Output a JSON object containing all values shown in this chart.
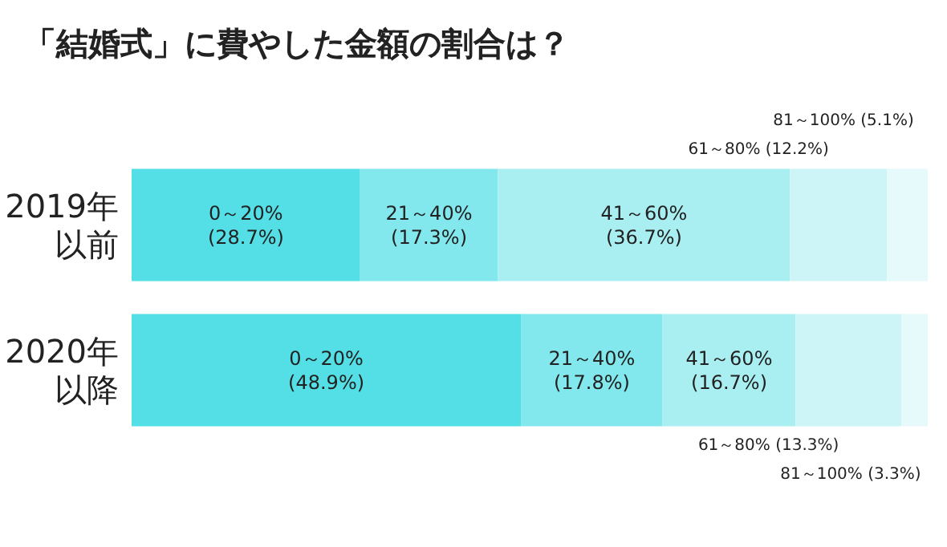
{
  "chart_data": {
    "type": "bar",
    "orientation": "horizontal",
    "stacked": true,
    "title": "「結婚式」に費やした金額の割合は？",
    "categories": [
      "2019年以前",
      "2020年以降"
    ],
    "xlim": [
      0,
      100
    ],
    "tick_labels": "y",
    "legend": false,
    "series": [
      {
        "name": "0～20%",
        "color": "#54dfe6",
        "values": [
          28.7,
          48.9
        ],
        "value_labels": [
          "(28.7%)",
          "(48.9%)"
        ]
      },
      {
        "name": "21～40%",
        "color": "#82e8ed",
        "values": [
          17.3,
          17.8
        ],
        "value_labels": [
          "(17.3%)",
          "(17.8%)"
        ]
      },
      {
        "name": "41～60%",
        "color": "#a9eff2",
        "values": [
          36.7,
          16.7
        ],
        "value_labels": [
          "(36.7%)",
          "(16.7%)"
        ]
      },
      {
        "name": "61～80%",
        "color": "#cdf5f7",
        "values": [
          12.2,
          13.3
        ],
        "value_labels": [
          "(12.2%)",
          "(13.3%)"
        ]
      },
      {
        "name": "81～100%",
        "color": "#e6fafb",
        "values": [
          5.1,
          3.3
        ],
        "value_labels": [
          "(5.1%)",
          "(3.3%)"
        ]
      }
    ]
  }
}
